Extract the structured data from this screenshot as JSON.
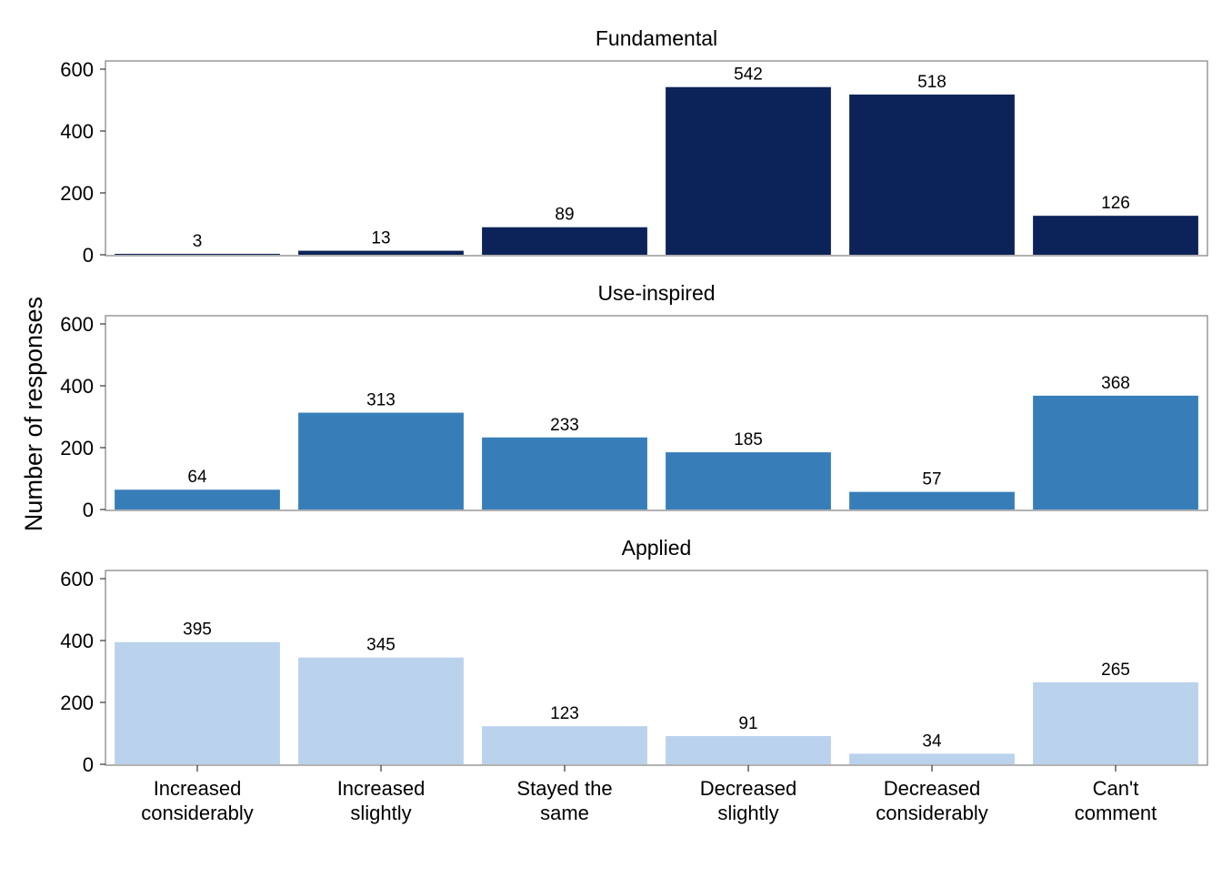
{
  "chart_data": {
    "type": "bar",
    "ylabel": "Number of responses",
    "xlabel": "",
    "ylim": [
      0,
      620
    ],
    "yticks": [
      0,
      200,
      400,
      600
    ],
    "categories": [
      [
        "Increased",
        "considerably"
      ],
      [
        "Increased",
        "slightly"
      ],
      [
        "Stayed the",
        "same"
      ],
      [
        "Decreased",
        "slightly"
      ],
      [
        "Decreased",
        "considerably"
      ],
      [
        "Can't",
        "comment"
      ]
    ],
    "panels": [
      {
        "title": "Fundamental",
        "color": "#0c2359",
        "values": [
          3,
          13,
          89,
          542,
          518,
          126
        ]
      },
      {
        "title": "Use-inspired",
        "color": "#377eb9",
        "values": [
          64,
          313,
          233,
          185,
          57,
          368
        ]
      },
      {
        "title": "Applied",
        "color": "#bad2ec",
        "values": [
          395,
          345,
          123,
          91,
          34,
          265
        ]
      }
    ],
    "grid": false,
    "legend": "none"
  }
}
